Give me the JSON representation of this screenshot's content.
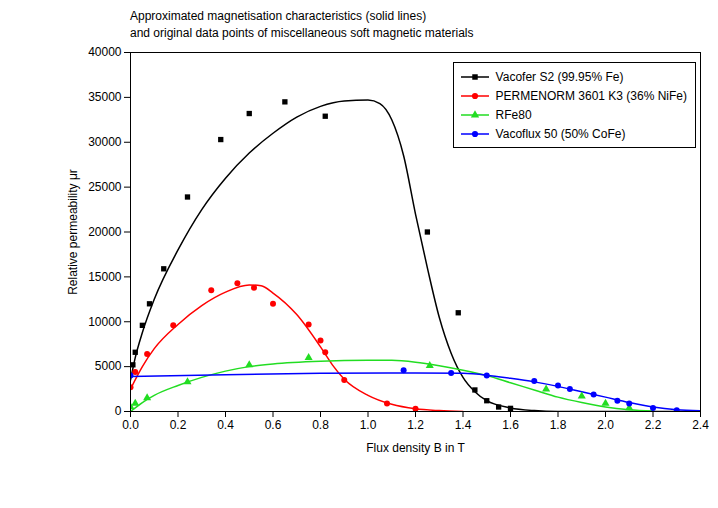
{
  "chart_data": {
    "type": "scatter_line",
    "title": "Approximated magnetisation characteristics (solid lines)",
    "subtitle": "and original data points of miscellaneous soft magnetic materials",
    "x_label": "Flux density B in T",
    "y_label": "Relative permeability μr",
    "xlim": [
      0,
      2.4
    ],
    "ylim": [
      0,
      40000
    ],
    "xticks": [
      {
        "value": 0,
        "label": "0.0"
      },
      0.2,
      0.4,
      0.6,
      0.8,
      {
        "value": 1,
        "label": "1.0"
      },
      1.2,
      1.4,
      1.6,
      1.8,
      {
        "value": 2,
        "label": "2.0"
      },
      2.2,
      2.4
    ],
    "yticks": [
      0,
      5000,
      10000,
      15000,
      20000,
      25000,
      30000,
      35000,
      40000
    ],
    "grid": false,
    "legend": "upper right",
    "series": [
      {
        "name": "Vacofer S2 (99.95% Fe)",
        "color": "#000000",
        "marker": "square",
        "line_style": "solid",
        "points": {
          "x": [
            0.01,
            0.02,
            0.05,
            0.08,
            0.14,
            0.24,
            0.38,
            0.5,
            0.65,
            0.82,
            1.25,
            1.38,
            1.45,
            1.5,
            1.55,
            1.6
          ],
          "y": [
            5200,
            6600,
            9600,
            12000,
            15900,
            23900,
            30300,
            33200,
            34500,
            32900,
            20000,
            11000,
            2400,
            1200,
            500,
            350
          ]
        },
        "curve": {
          "x": [
            0,
            0.02,
            0.05,
            0.1,
            0.2,
            0.3,
            0.4,
            0.5,
            0.6,
            0.7,
            0.8,
            0.9,
            1.0,
            1.05,
            1.1,
            1.15,
            1.2,
            1.25,
            1.3,
            1.35,
            1.4,
            1.45,
            1.5,
            1.6,
            1.7,
            1.8,
            2.4
          ],
          "y": [
            3500,
            6000,
            8800,
            12500,
            18000,
            22500,
            26000,
            28800,
            31000,
            32800,
            34000,
            34600,
            34700,
            34300,
            32500,
            28500,
            22000,
            16000,
            10500,
            6500,
            3800,
            2200,
            1200,
            400,
            100,
            0,
            0
          ]
        }
      },
      {
        "name": "PERMENORM 3601 K3 (36% NiFe)",
        "color": "#ff0000",
        "marker": "circle",
        "line_style": "solid",
        "points": {
          "x": [
            0.0,
            0.02,
            0.07,
            0.18,
            0.34,
            0.45,
            0.52,
            0.6,
            0.75,
            0.8,
            0.82,
            0.9,
            1.08,
            1.2
          ],
          "y": [
            2700,
            4400,
            6400,
            9600,
            13500,
            14300,
            13800,
            12000,
            9700,
            7900,
            6600,
            3500,
            900,
            300
          ]
        },
        "curve": {
          "x": [
            0,
            0.05,
            0.1,
            0.2,
            0.3,
            0.4,
            0.5,
            0.55,
            0.6,
            0.7,
            0.8,
            0.85,
            0.9,
            1.0,
            1.1,
            1.2,
            1.3,
            1.4
          ],
          "y": [
            2500,
            5000,
            7000,
            9700,
            11800,
            13300,
            14100,
            14000,
            13200,
            10800,
            7200,
            5200,
            3600,
            1800,
            800,
            300,
            100,
            0
          ]
        }
      },
      {
        "name": "RFe80",
        "color": "#22dd22",
        "marker": "triangle",
        "line_style": "solid",
        "points": {
          "x": [
            0.0,
            0.02,
            0.07,
            0.24,
            0.5,
            0.75,
            1.26,
            1.75,
            1.9,
            2.0,
            2.1
          ],
          "y": [
            500,
            900,
            1500,
            3300,
            5200,
            6000,
            5100,
            2500,
            1700,
            900,
            400
          ]
        },
        "curve": {
          "x": [
            0,
            0.05,
            0.1,
            0.2,
            0.3,
            0.4,
            0.5,
            0.6,
            0.8,
            1.0,
            1.1,
            1.2,
            1.3,
            1.4,
            1.5,
            1.6,
            1.7,
            1.8,
            1.9,
            2.0,
            2.1,
            2.2
          ],
          "y": [
            0,
            1000,
            1800,
            2900,
            3800,
            4500,
            5000,
            5300,
            5600,
            5700,
            5700,
            5500,
            5100,
            4600,
            4000,
            3200,
            2400,
            1600,
            1000,
            500,
            200,
            50
          ]
        }
      },
      {
        "name": "Vacoflux 50 (50% CoFe)",
        "color": "#0000ff",
        "marker": "circle",
        "line_style": "solid",
        "points": {
          "x": [
            0.0,
            1.15,
            1.35,
            1.5,
            1.7,
            1.8,
            1.85,
            1.95,
            2.05,
            2.1,
            2.2,
            2.3
          ],
          "y": [
            4000,
            4600,
            4300,
            4000,
            3400,
            2900,
            2500,
            1900,
            1200,
            900,
            400,
            150
          ]
        },
        "curve": {
          "x": [
            0,
            0.4,
            0.8,
            1.2,
            1.4,
            1.5,
            1.6,
            1.7,
            1.8,
            1.9,
            2.0,
            2.1,
            2.2,
            2.3,
            2.4
          ],
          "y": [
            3900,
            4100,
            4250,
            4300,
            4250,
            4050,
            3700,
            3300,
            2800,
            2200,
            1600,
            1000,
            500,
            200,
            80
          ]
        }
      }
    ]
  }
}
